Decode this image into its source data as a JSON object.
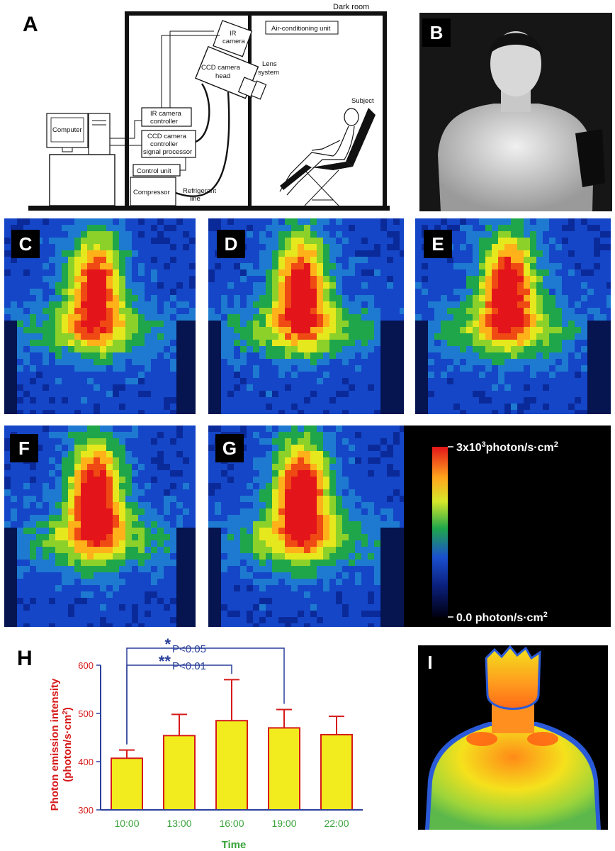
{
  "panels": {
    "A": "A",
    "B": "B",
    "C": "C",
    "D": "D",
    "E": "E",
    "F": "F",
    "G": "G",
    "H": "H",
    "I": "I"
  },
  "diagram": {
    "dark_room": "Dark room",
    "ir_camera": [
      "IR",
      "camera"
    ],
    "air_conditioning": "Air-conditioning unit",
    "ccd_camera_head": [
      "CCD camera",
      "head"
    ],
    "lens_system": [
      "Lens",
      "system"
    ],
    "subject": "Subject",
    "computer": "Computer",
    "ir_camera_controller": [
      "IR camera",
      "controller"
    ],
    "ccd_controller": [
      "CCD camera",
      "controller",
      "signal processor"
    ],
    "control_unit": "Control unit",
    "compressor": "Compressor",
    "refrigerant_line": [
      "Refrigerant",
      "line"
    ]
  },
  "colorbar": {
    "max_label_pre": "3x10",
    "max_label_exp": "3",
    "max_label_post": "photon/s·cm",
    "max_label_exp2": "2",
    "min_label_pre": "0.0 photon/s·cm",
    "min_label_exp": "2"
  },
  "chart_data": {
    "type": "bar",
    "categories": [
      "10:00",
      "13:00",
      "16:00",
      "19:00",
      "22:00"
    ],
    "values": [
      407,
      454,
      485,
      470,
      456
    ],
    "errors": [
      17,
      44,
      85,
      38,
      38
    ],
    "ylabel": [
      "Photon emission intensity",
      "(photon/s·cm",
      "2",
      ")"
    ],
    "xlabel": "Time",
    "ylim": [
      300,
      600
    ],
    "yticks": [
      "300",
      "400",
      "500",
      "600"
    ],
    "bar_color": "#f2ec1e",
    "bar_edge": "#d61a1a",
    "axis_color": "#2a3f9a",
    "significance": [
      {
        "star": "*",
        "label": "P<0.05",
        "from": "10:00",
        "to": "19:00"
      },
      {
        "star": "**",
        "label": "P<0.01",
        "from": "10:00",
        "to": "16:00"
      }
    ]
  }
}
